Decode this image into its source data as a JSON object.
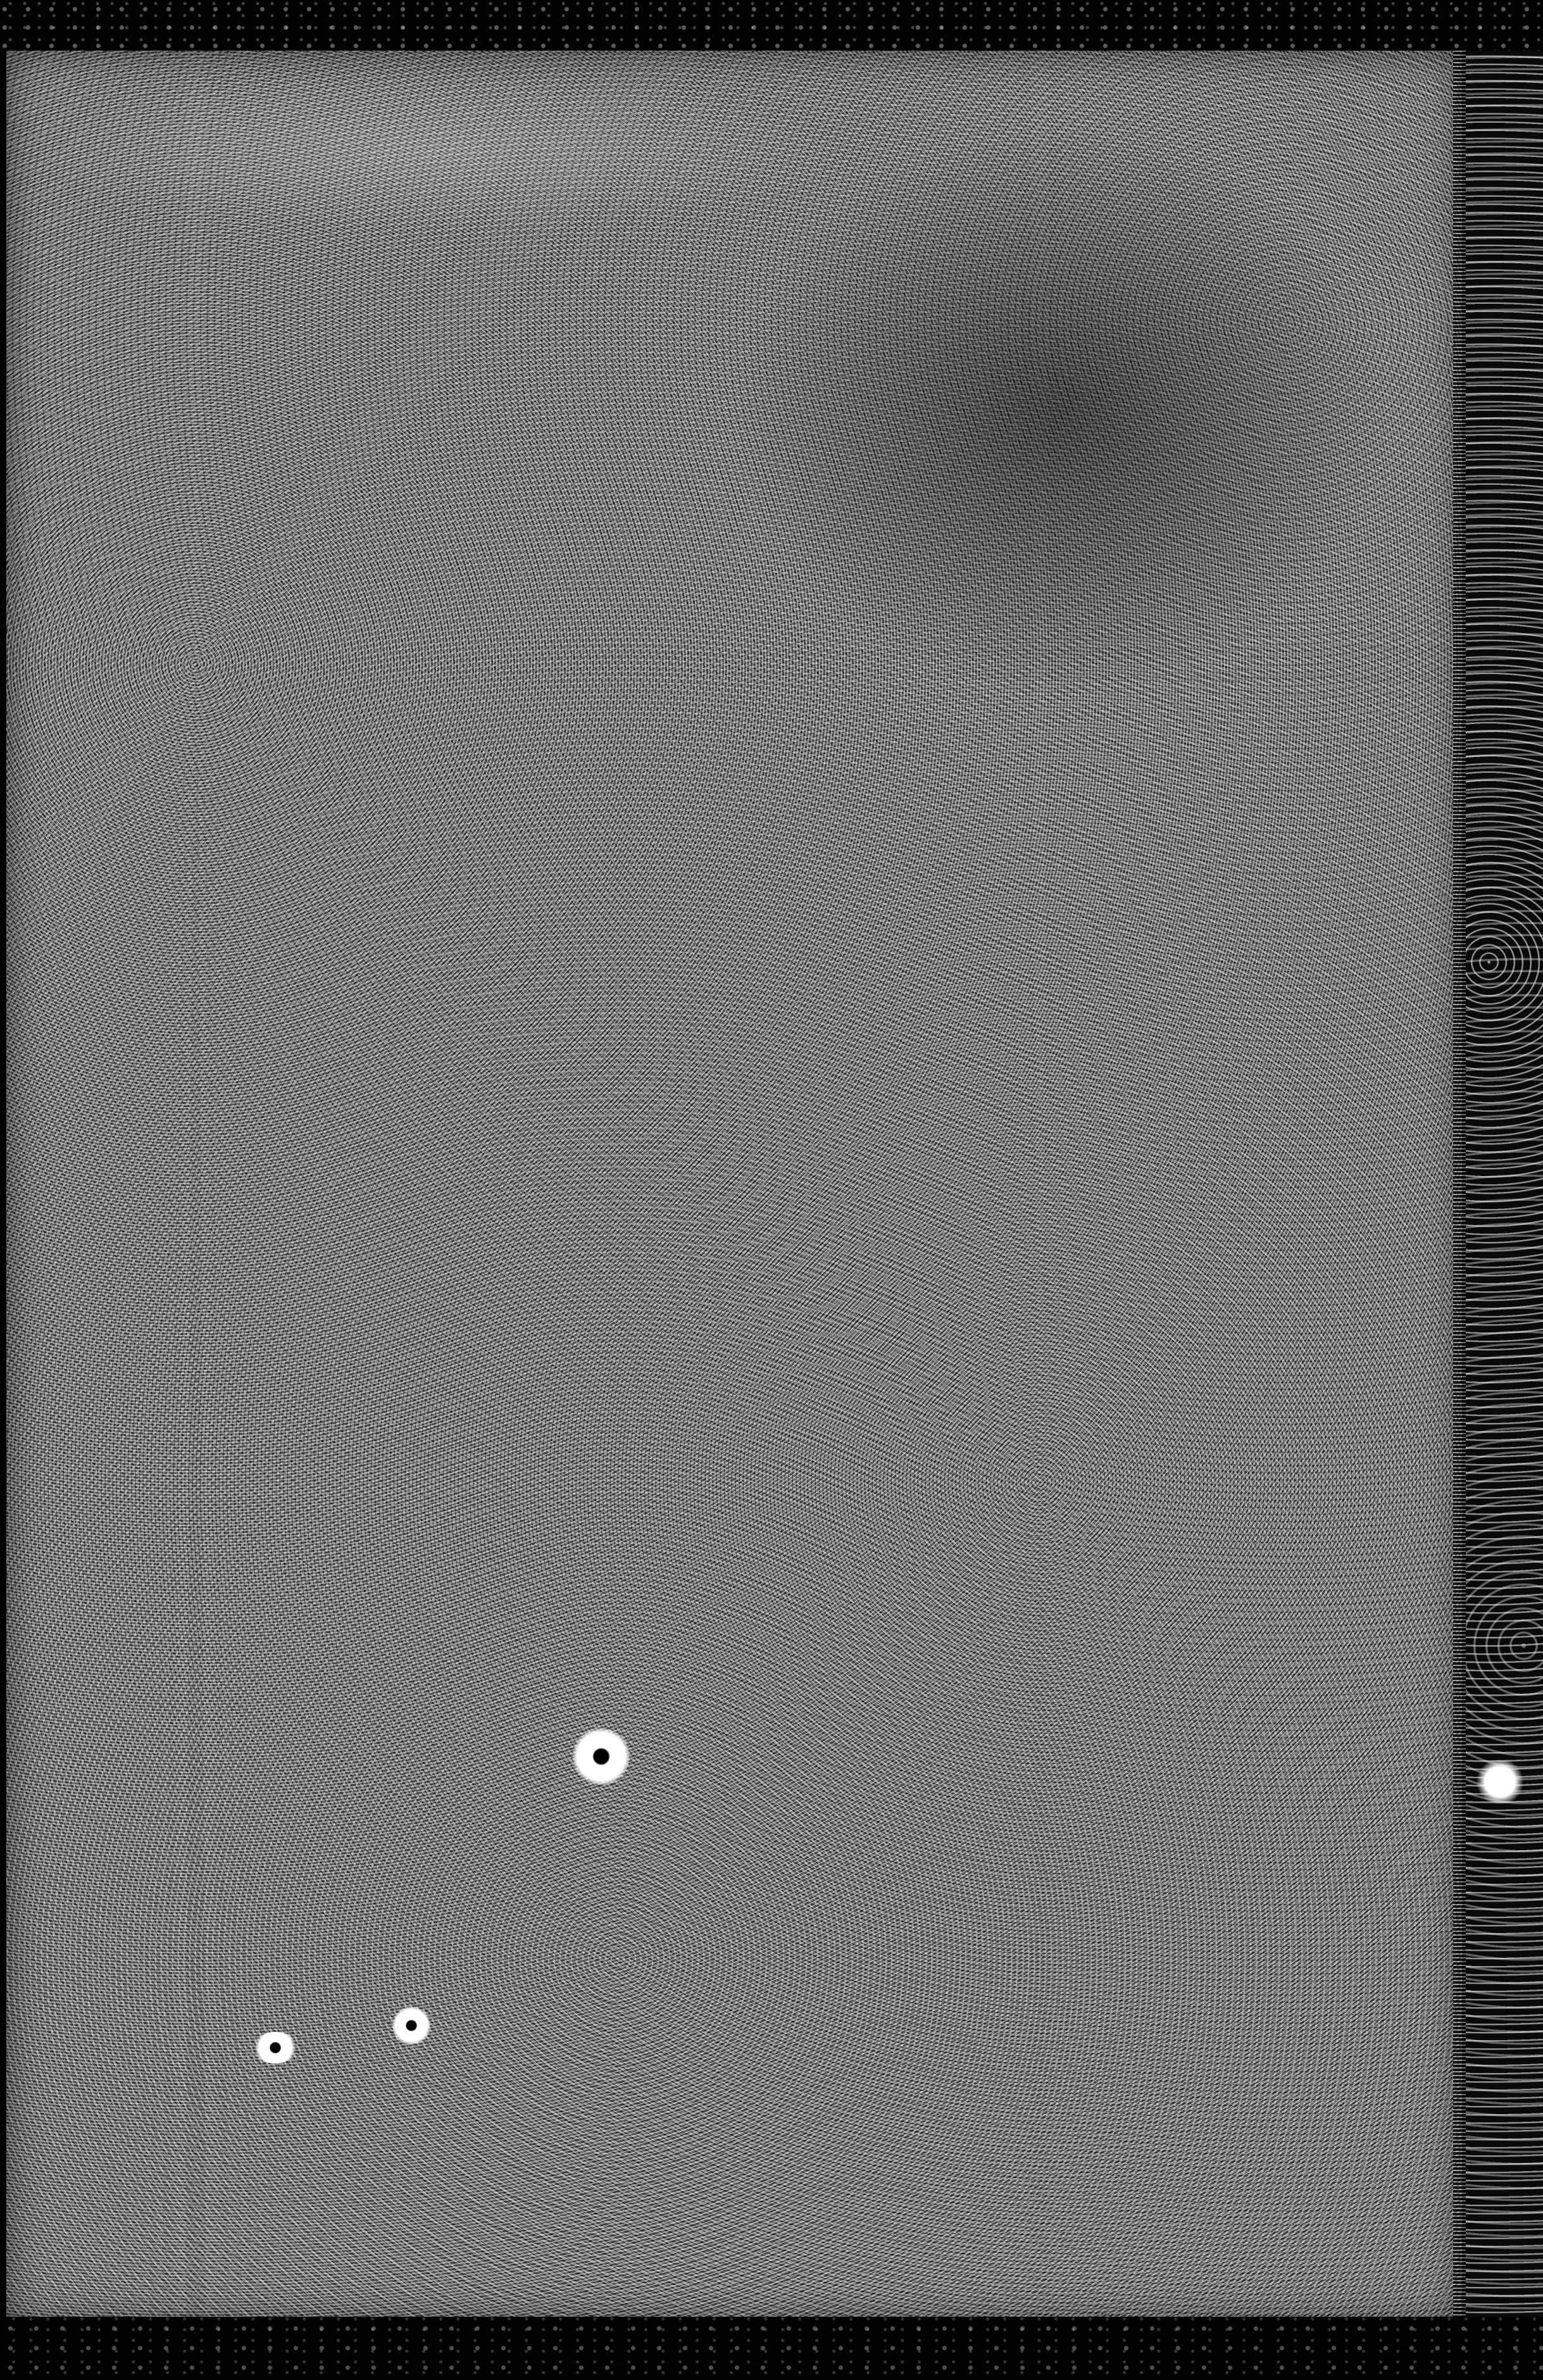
{
  "image": {
    "subject": "",
    "colors": {
      "background": "#000000",
      "board": "#6e6e6e",
      "spine": "#0a0a0a",
      "speck_light": "#ffffff",
      "speck_dark": "#000000"
    }
  }
}
